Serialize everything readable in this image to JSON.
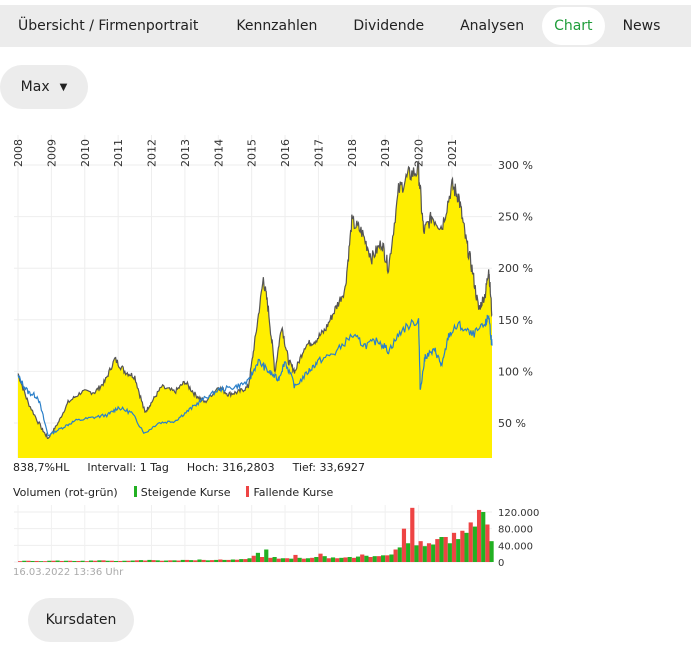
{
  "tabs": [
    {
      "label": "Übersicht / Firmenportrait",
      "active": false
    },
    {
      "label": "Kennzahlen",
      "active": false
    },
    {
      "label": "Dividende",
      "active": false
    },
    {
      "label": "Analysen",
      "active": false
    },
    {
      "label": "Chart",
      "active": true
    },
    {
      "label": "News",
      "active": false
    }
  ],
  "range_select": {
    "value": "Max",
    "icon": "chevron-down-icon"
  },
  "colors": {
    "accent": "#1f9d3a",
    "area": "#ffef00",
    "main_line": "#555555",
    "compare_line": "#2a7fc9",
    "rising": "#22b022",
    "falling": "#ee4444"
  },
  "chart_data": [
    {
      "type": "area",
      "x_ticks": [
        "2008",
        "2009",
        "2010",
        "2011",
        "2012",
        "2013",
        "2014",
        "2015",
        "2016",
        "2017",
        "2018",
        "2019",
        "2020",
        "2021"
      ],
      "y_ticks": [
        "50 %",
        "100 %",
        "150 %",
        "200 %",
        "250 %",
        "300 %"
      ],
      "ylim": [
        16,
        320
      ],
      "grid": true,
      "series": [
        {
          "x": [
            2008.0,
            2008.3,
            2008.7,
            2008.9,
            2009.2,
            2009.5,
            2009.9,
            2010.3,
            2010.6,
            2010.9,
            2011.2,
            2011.5,
            2011.8,
            2012.0,
            2012.3,
            2012.7,
            2013.0,
            2013.3,
            2013.6,
            2014.0,
            2014.3,
            2014.6,
            2014.9,
            2015.1,
            2015.35,
            2015.5,
            2015.7,
            2015.9,
            2016.1,
            2016.3,
            2016.6,
            2016.9,
            2017.2,
            2017.5,
            2017.8,
            2018.0,
            2018.3,
            2018.6,
            2018.9,
            2019.1,
            2019.4,
            2019.7,
            2020.0,
            2020.15,
            2020.4,
            2020.7,
            2021.0,
            2021.2,
            2021.4,
            2021.6,
            2021.8,
            2022.0,
            2022.1,
            2022.2
          ],
          "y": [
            98,
            70,
            45,
            35,
            50,
            70,
            80,
            80,
            90,
            112,
            100,
            95,
            60,
            70,
            85,
            80,
            90,
            78,
            70,
            85,
            78,
            80,
            85,
            130,
            190,
            160,
            100,
            145,
            110,
            100,
            125,
            130,
            140,
            160,
            180,
            245,
            235,
            210,
            225,
            200,
            275,
            290,
            295,
            235,
            250,
            240,
            280,
            270,
            230,
            200,
            160,
            175,
            200,
            155
          ]
        },
        {
          "x": [
            2008.0,
            2008.3,
            2008.6,
            2008.9,
            2009.3,
            2009.7,
            2010.2,
            2010.7,
            2011.0,
            2011.4,
            2011.8,
            2012.2,
            2012.7,
            2013.1,
            2013.5,
            2014.0,
            2014.5,
            2014.9,
            2015.2,
            2015.5,
            2015.8,
            2016.0,
            2016.3,
            2016.7,
            2017.0,
            2017.5,
            2018.0,
            2018.4,
            2018.8,
            2019.1,
            2019.5,
            2020.0,
            2020.05,
            2020.2,
            2020.5,
            2020.7,
            2020.9,
            2021.2,
            2021.6,
            2022.0,
            2022.1,
            2022.2
          ],
          "y": [
            95,
            80,
            75,
            38,
            45,
            52,
            55,
            58,
            65,
            60,
            40,
            50,
            52,
            62,
            72,
            82,
            85,
            90,
            110,
            100,
            92,
            110,
            85,
            100,
            110,
            118,
            135,
            125,
            130,
            120,
            140,
            150,
            82,
            115,
            120,
            105,
            135,
            145,
            135,
            145,
            155,
            125
          ]
        }
      ]
    },
    {
      "type": "bar",
      "title": "Volumen (rot-grün)",
      "legend": [
        "Steigende Kurse",
        "Fallende Kurse"
      ],
      "y_ticks": [
        "0",
        "40.000",
        "80.000",
        "120.000"
      ],
      "ylim": [
        0,
        135000
      ],
      "x_start": 2008.0,
      "x_step": 0.25,
      "rising": [
        3000,
        2500,
        2000,
        3000,
        3500,
        3000,
        2500,
        3000,
        3500,
        4000,
        3000,
        2500,
        3000,
        3500,
        4500,
        5000,
        4000,
        3500,
        4000,
        5000,
        4500,
        6000,
        4000,
        5000,
        5000,
        6000,
        7000,
        9000,
        22000,
        30000,
        12000,
        9000,
        8000,
        10000,
        9000,
        12000,
        14000,
        11000,
        10000,
        12000,
        13000,
        15000,
        14000,
        16000,
        18000,
        35000,
        45000,
        40000,
        38000,
        42000,
        60000,
        45000,
        55000,
        70000,
        85000,
        120000,
        50000
      ],
      "falling": [
        2000,
        3000,
        2500,
        2000,
        3000,
        2500,
        3000,
        2500,
        2000,
        3000,
        4000,
        3000,
        2500,
        3000,
        4000,
        3500,
        4500,
        3000,
        4000,
        3500,
        5000,
        4000,
        5000,
        4500,
        6000,
        5000,
        5500,
        7000,
        15000,
        12000,
        10000,
        8000,
        9000,
        17000,
        8000,
        10000,
        20000,
        9000,
        9000,
        11000,
        10000,
        18000,
        12000,
        14000,
        16000,
        30000,
        80000,
        130000,
        50000,
        45000,
        55000,
        60000,
        70000,
        75000,
        95000,
        125000,
        90000
      ]
    }
  ],
  "info": {
    "change": "838,7%HL",
    "interval": "Intervall: 1 Tag",
    "high": "Hoch: 316,2803",
    "low": "Tief: 33,6927"
  },
  "timestamp": "16.03.2022 13:36 Uhr",
  "buttons": {
    "kursdaten": "Kursdaten"
  }
}
